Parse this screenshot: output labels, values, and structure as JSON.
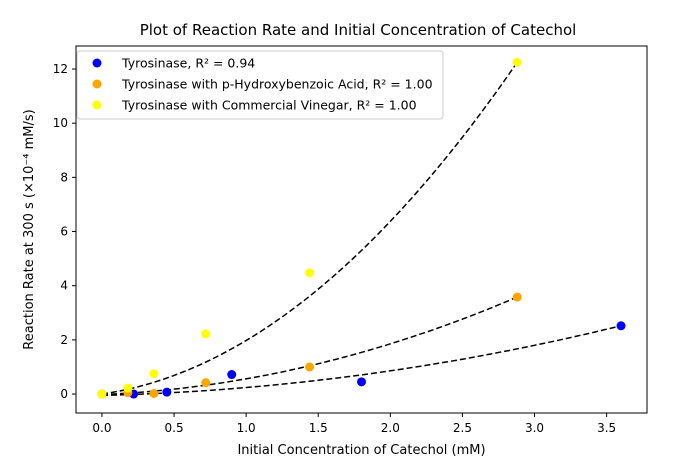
{
  "chart_data": {
    "type": "scatter",
    "title": "Plot of Reaction Rate and Initial Concentration of Catechol",
    "xlabel": "Initial Concentration of Catechol (mM)",
    "ylabel": "Reaction Rate at 300 s (×10⁻⁴ mM/s)",
    "xlim": [
      -0.18,
      3.78
    ],
    "ylim": [
      -0.7,
      12.85
    ],
    "xticks": [
      0.0,
      0.5,
      1.0,
      1.5,
      2.0,
      2.5,
      3.0,
      3.5
    ],
    "xtick_labels": [
      "0.0",
      "0.5",
      "1.0",
      "1.5",
      "2.0",
      "2.5",
      "3.0",
      "3.5"
    ],
    "yticks": [
      0,
      2,
      4,
      6,
      8,
      10,
      12
    ],
    "ytick_labels": [
      "0",
      "2",
      "4",
      "6",
      "8",
      "10",
      "12"
    ],
    "grid": false,
    "legend_position": "top-left",
    "fit_line_color": "#000000",
    "series": [
      {
        "name": "Tyrosinase, R² = 0.94",
        "color": "#0000ff",
        "x": [
          0.0,
          0.22,
          0.45,
          0.9,
          1.8,
          3.6
        ],
        "y": [
          0.0,
          0.0,
          0.07,
          0.72,
          0.45,
          2.52
        ],
        "fit_x": [
          0.0,
          3.6
        ],
        "fit_y": [
          -0.05,
          2.52
        ]
      },
      {
        "name": "Tyrosinase with p-Hydroxybenzoic Acid, R² = 1.00",
        "color": "#ffa500",
        "x": [
          0.0,
          0.18,
          0.36,
          0.72,
          1.44,
          2.88
        ],
        "y": [
          0.0,
          0.05,
          0.02,
          0.42,
          1.0,
          3.58
        ],
        "fit_x": [
          0.0,
          2.88
        ],
        "fit_y": [
          -0.02,
          3.58
        ]
      },
      {
        "name": "Tyrosinase with Commercial Vinegar, R² = 1.00",
        "color": "#ffff00",
        "x": [
          0.0,
          0.18,
          0.36,
          0.72,
          1.44,
          2.88
        ],
        "y": [
          0.0,
          0.22,
          0.75,
          2.22,
          4.48,
          12.25
        ],
        "fit_x": [
          0.0,
          2.88
        ],
        "fit_y": [
          0.0,
          12.25
        ]
      }
    ]
  }
}
